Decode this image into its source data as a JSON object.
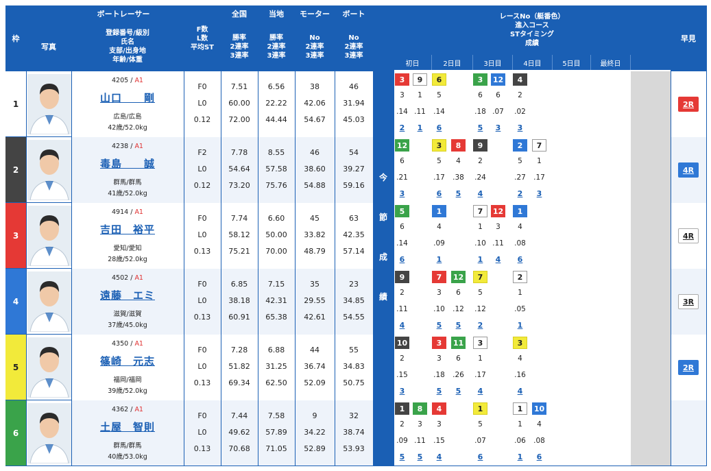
{
  "header": {
    "waku": "枠",
    "racer": "ボートレーサー",
    "photo": "写真",
    "info": [
      "登録番号/級別",
      "氏名",
      "支部/出身地",
      "年齢/体重"
    ],
    "fl": [
      "F数",
      "L数",
      "平均ST"
    ],
    "zenkoku": "全国",
    "touchi": "当地",
    "motor": "モーター",
    "boat": "ボート",
    "rates": [
      "勝率",
      "2連率",
      "3連率"
    ],
    "no_rates": [
      "No",
      "2連率",
      "3連率"
    ],
    "race_info": [
      "レースNo（艇番色）",
      "進入コース",
      "STタイミング",
      "成績"
    ],
    "days": [
      "初日",
      "2日目",
      "3日目",
      "4日目",
      "5日目",
      "最終日"
    ],
    "hayami": "早見",
    "konsetsu": [
      "今",
      "節",
      "成",
      "績"
    ]
  },
  "colors": {
    "1": {
      "bg": "#ffffff",
      "fg": "#222222",
      "border": "#999999"
    },
    "2": {
      "bg": "#444444",
      "fg": "#ffffff",
      "border": "#444444"
    },
    "3": {
      "bg": "#e53935",
      "fg": "#ffffff",
      "border": "#e53935"
    },
    "4": {
      "bg": "#2f78d6",
      "fg": "#ffffff",
      "border": "#2f78d6"
    },
    "5": {
      "bg": "#f2ea3a",
      "fg": "#222222",
      "border": "#d8cf20"
    },
    "6": {
      "bg": "#3aa34a",
      "fg": "#ffffff",
      "border": "#3aa34a"
    }
  },
  "racers": [
    {
      "waku": "1",
      "reg": "4205",
      "cls": "A1",
      "name": "山口　　剛",
      "branch": "広島/広島",
      "age": "42歳/52.0kg",
      "f": "F0",
      "l": "L0",
      "st": "0.12",
      "zen": [
        "7.51",
        "60.00",
        "72.00"
      ],
      "tou": [
        "6.56",
        "22.22",
        "44.44"
      ],
      "motor": [
        "38",
        "42.06",
        "54.67"
      ],
      "boat": [
        "46",
        "31.94",
        "45.03"
      ],
      "races": [
        {
          "no": "3",
          "color": "3",
          "course": "3",
          "st": ".14",
          "res": "2"
        },
        {
          "no": "9",
          "color": "1",
          "course": "1",
          "st": ".11",
          "res": "1"
        },
        {
          "no": "6",
          "color": "5",
          "course": "5",
          "st": ".14",
          "res": "6"
        },
        null,
        {
          "no": "3",
          "color": "6",
          "course": "6",
          "st": ".18",
          "res": "5"
        },
        {
          "no": "12",
          "color": "4",
          "course": "6",
          "st": ".07",
          "res": "3"
        },
        {
          "no": "4",
          "color": "2",
          "course": "2",
          "st": ".02",
          "res": "3"
        },
        null
      ],
      "hayami": {
        "label": "2R",
        "color": "3"
      }
    },
    {
      "waku": "2",
      "reg": "4238",
      "cls": "A1",
      "name": "毒島　　誠",
      "branch": "群馬/群馬",
      "age": "41歳/52.0kg",
      "f": "F2",
      "l": "L0",
      "st": "0.12",
      "zen": [
        "7.78",
        "54.64",
        "73.20"
      ],
      "tou": [
        "8.55",
        "57.58",
        "75.76"
      ],
      "motor": [
        "46",
        "38.60",
        "54.88"
      ],
      "boat": [
        "54",
        "39.27",
        "59.16"
      ],
      "races": [
        {
          "no": "12",
          "color": "6",
          "course": "6",
          "st": ".21",
          "res": "3"
        },
        null,
        {
          "no": "3",
          "color": "5",
          "course": "5",
          "st": ".17",
          "res": "6"
        },
        {
          "no": "8",
          "color": "3",
          "course": "4",
          "st": ".38",
          "res": "5"
        },
        {
          "no": "9",
          "color": "2",
          "course": "2",
          "st": ".24",
          "res": "4"
        },
        null,
        {
          "no": "2",
          "color": "4",
          "course": "5",
          "st": ".27",
          "res": "2"
        },
        {
          "no": "7",
          "color": "1",
          "course": "1",
          "st": ".17",
          "res": "3"
        }
      ],
      "hayami": {
        "label": "4R",
        "color": "4"
      }
    },
    {
      "waku": "3",
      "reg": "4914",
      "cls": "A1",
      "name": "吉田　裕平",
      "branch": "愛知/愛知",
      "age": "28歳/52.0kg",
      "f": "F0",
      "l": "L0",
      "st": "0.13",
      "zen": [
        "7.74",
        "58.12",
        "75.21"
      ],
      "tou": [
        "6.60",
        "50.00",
        "70.00"
      ],
      "motor": [
        "45",
        "33.82",
        "48.79"
      ],
      "boat": [
        "63",
        "42.35",
        "57.14"
      ],
      "races": [
        {
          "no": "5",
          "color": "6",
          "course": "6",
          "st": ".14",
          "res": "6"
        },
        null,
        {
          "no": "1",
          "color": "4",
          "course": "4",
          "st": ".09",
          "res": "1"
        },
        null,
        {
          "no": "7",
          "color": "1",
          "course": "1",
          "st": ".10",
          "res": "1"
        },
        {
          "no": "12",
          "color": "3",
          "course": "3",
          "st": ".11",
          "res": "4"
        },
        {
          "no": "1",
          "color": "4",
          "course": "4",
          "st": ".08",
          "res": "6"
        },
        null
      ],
      "hayami": {
        "label": "4R",
        "color": "1"
      }
    },
    {
      "waku": "4",
      "reg": "4502",
      "cls": "A1",
      "name": "遠藤　エミ",
      "branch": "滋賀/滋賀",
      "age": "37歳/45.0kg",
      "f": "F0",
      "l": "L0",
      "st": "0.13",
      "zen": [
        "6.85",
        "38.18",
        "60.91"
      ],
      "tou": [
        "7.15",
        "42.31",
        "65.38"
      ],
      "motor": [
        "35",
        "29.55",
        "42.61"
      ],
      "boat": [
        "23",
        "34.85",
        "54.55"
      ],
      "races": [
        {
          "no": "9",
          "color": "2",
          "course": "2",
          "st": ".11",
          "res": "4"
        },
        null,
        {
          "no": "7",
          "color": "3",
          "course": "3",
          "st": ".10",
          "res": "5"
        },
        {
          "no": "12",
          "color": "6",
          "course": "6",
          "st": ".12",
          "res": "5"
        },
        {
          "no": "7",
          "color": "5",
          "course": "5",
          "st": ".12",
          "res": "2"
        },
        null,
        {
          "no": "2",
          "color": "1",
          "course": "1",
          "st": ".05",
          "res": "1"
        },
        null
      ],
      "hayami": {
        "label": "3R",
        "color": "1"
      }
    },
    {
      "waku": "5",
      "reg": "4350",
      "cls": "A1",
      "name": "篠崎　元志",
      "branch": "福岡/福岡",
      "age": "39歳/52.0kg",
      "f": "F0",
      "l": "L0",
      "st": "0.13",
      "zen": [
        "7.28",
        "51.82",
        "69.34"
      ],
      "tou": [
        "6.88",
        "31.25",
        "62.50"
      ],
      "motor": [
        "44",
        "36.74",
        "52.09"
      ],
      "boat": [
        "55",
        "34.83",
        "50.75"
      ],
      "races": [
        {
          "no": "10",
          "color": "2",
          "course": "2",
          "st": ".15",
          "res": "3"
        },
        null,
        {
          "no": "3",
          "color": "3",
          "course": "3",
          "st": ".18",
          "res": "5"
        },
        {
          "no": "11",
          "color": "6",
          "course": "6",
          "st": ".26",
          "res": "5"
        },
        {
          "no": "3",
          "color": "1",
          "course": "1",
          "st": ".17",
          "res": "4"
        },
        null,
        {
          "no": "3",
          "color": "5",
          "course": "4",
          "st": ".16",
          "res": "4"
        },
        null
      ],
      "hayami": {
        "label": "2R",
        "color": "4"
      }
    },
    {
      "waku": "6",
      "reg": "4362",
      "cls": "A1",
      "name": "土屋　智則",
      "branch": "群馬/群馬",
      "age": "40歳/53.0kg",
      "f": "F0",
      "l": "L0",
      "st": "0.13",
      "zen": [
        "7.44",
        "49.62",
        "70.68"
      ],
      "tou": [
        "7.58",
        "57.89",
        "71.05"
      ],
      "motor": [
        "9",
        "34.22",
        "52.89"
      ],
      "boat": [
        "32",
        "38.74",
        "53.93"
      ],
      "races": [
        {
          "no": "1",
          "color": "2",
          "course": "2",
          "st": ".09",
          "res": "5"
        },
        {
          "no": "8",
          "color": "6",
          "course": "3",
          "st": ".11",
          "res": "5"
        },
        {
          "no": "4",
          "color": "3",
          "course": "3",
          "st": ".15",
          "res": "4"
        },
        null,
        {
          "no": "1",
          "color": "5",
          "course": "5",
          "st": ".07",
          "res": "6"
        },
        null,
        {
          "no": "1",
          "color": "1",
          "course": "1",
          "st": ".06",
          "res": "1"
        },
        {
          "no": "10",
          "color": "4",
          "course": "4",
          "st": ".08",
          "res": "6"
        }
      ],
      "hayami": null
    }
  ]
}
